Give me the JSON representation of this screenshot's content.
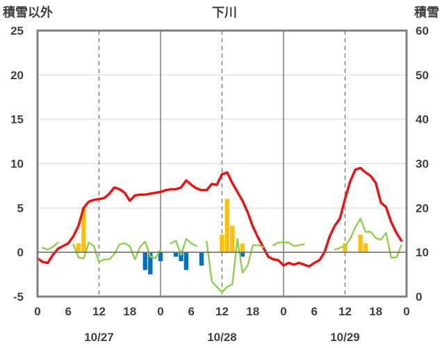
{
  "chart_data": {
    "type": "bar+line",
    "title": "下川",
    "y_left_label": "積雪以外",
    "y_right_label": "積雪",
    "y_left": {
      "min": -5,
      "max": 25,
      "ticks": [
        "-5",
        "0",
        "5",
        "10",
        "15",
        "20",
        "25"
      ]
    },
    "y_right": {
      "min": 0,
      "max": 60,
      "ticks": [
        "0",
        "10",
        "20",
        "30",
        "40",
        "50",
        "60"
      ]
    },
    "x": {
      "min": 0,
      "max": 72,
      "unit": "hours",
      "tick_labels": [
        "0",
        "6",
        "12",
        "18",
        "0",
        "6",
        "12",
        "18",
        "0",
        "6",
        "12",
        "18",
        "0"
      ],
      "dates": [
        "10/27",
        "10/28",
        "10/29"
      ],
      "dashed_at": [
        12,
        36,
        60
      ],
      "solid_at": [
        24,
        48
      ]
    },
    "series": [
      {
        "type": "line",
        "color": "#ee1111",
        "axis": "left",
        "points": [
          [
            0,
            -0.7
          ],
          [
            1,
            -1.1
          ],
          [
            2,
            -1.2
          ],
          [
            3,
            -0.3
          ],
          [
            4,
            0.4
          ],
          [
            5,
            0.7
          ],
          [
            6,
            1.0
          ],
          [
            7,
            1.8
          ],
          [
            8,
            3.0
          ],
          [
            9,
            5.0
          ],
          [
            10,
            5.7
          ],
          [
            11,
            5.9
          ],
          [
            12,
            6.0
          ],
          [
            13,
            6.1
          ],
          [
            14,
            6.6
          ],
          [
            15,
            7.3
          ],
          [
            16,
            7.1
          ],
          [
            17,
            6.7
          ],
          [
            18,
            5.8
          ],
          [
            19,
            6.4
          ],
          [
            20,
            6.5
          ],
          [
            21,
            6.5
          ],
          [
            22,
            6.6
          ],
          [
            23,
            6.7
          ],
          [
            24,
            6.8
          ],
          [
            25,
            7.0
          ],
          [
            26,
            7.1
          ],
          [
            27,
            7.1
          ],
          [
            28,
            7.3
          ],
          [
            29,
            8.1
          ],
          [
            30,
            7.6
          ],
          [
            31,
            7.2
          ],
          [
            32,
            7.0
          ],
          [
            33,
            7.0
          ],
          [
            34,
            7.7
          ],
          [
            35,
            7.6
          ],
          [
            36,
            8.8
          ],
          [
            37,
            9.0
          ],
          [
            38,
            7.8
          ],
          [
            39,
            6.8
          ],
          [
            40,
            5.8
          ],
          [
            41,
            4.5
          ],
          [
            42,
            2.9
          ],
          [
            43,
            1.7
          ],
          [
            44,
            0.6
          ],
          [
            45,
            -0.5
          ],
          [
            46,
            -0.8
          ],
          [
            47,
            -0.9
          ],
          [
            48,
            -1.5
          ],
          [
            49,
            -1.2
          ],
          [
            50,
            -1.4
          ],
          [
            51,
            -1.2
          ],
          [
            52,
            -1.4
          ],
          [
            53,
            -1.6
          ],
          [
            54,
            -1.2
          ],
          [
            55,
            -0.9
          ],
          [
            56,
            0.0
          ],
          [
            57,
            1.8
          ],
          [
            58,
            3.0
          ],
          [
            59,
            3.8
          ],
          [
            60,
            6.0
          ],
          [
            61,
            8.0
          ],
          [
            62,
            9.3
          ],
          [
            63,
            9.5
          ],
          [
            64,
            9.0
          ],
          [
            65,
            8.6
          ],
          [
            66,
            7.8
          ],
          [
            67,
            5.6
          ],
          [
            68,
            5.1
          ],
          [
            69,
            3.4
          ],
          [
            70,
            2.2
          ],
          [
            71,
            1.3
          ]
        ]
      },
      {
        "type": "line",
        "color": "#92d050",
        "axis": "left",
        "segments": [
          [
            [
              1,
              0.5
            ],
            [
              2,
              0.3
            ],
            [
              3,
              0.6
            ],
            [
              4,
              1.1
            ]
          ],
          [
            [
              7,
              0.9
            ],
            [
              8,
              -0.6
            ],
            [
              9,
              -0.7
            ],
            [
              10,
              1.1
            ],
            [
              11,
              0.7
            ],
            [
              12,
              -1.1
            ],
            [
              13,
              -0.8
            ],
            [
              14,
              -0.8
            ],
            [
              15,
              -0.2
            ],
            [
              16,
              0.9
            ],
            [
              17,
              1.0
            ],
            [
              18,
              0.7
            ],
            [
              19,
              -0.8
            ],
            [
              20,
              0.6
            ],
            [
              21,
              1.2
            ],
            [
              22,
              -0.5
            ],
            [
              23,
              -0.7
            ],
            [
              24,
              0.3
            ]
          ],
          [
            [
              26,
              1.0
            ],
            [
              27,
              1.3
            ],
            [
              28,
              -0.3
            ],
            [
              29,
              1.5
            ],
            [
              30,
              1.0
            ],
            [
              31,
              0.7
            ]
          ],
          [
            [
              33,
              1.2
            ],
            [
              34,
              -3.3
            ],
            [
              35,
              -3.9
            ],
            [
              36,
              -4.5
            ],
            [
              37,
              -3.9
            ],
            [
              38,
              -3.6
            ],
            [
              39,
              1.5
            ],
            [
              40,
              -2.3
            ],
            [
              41,
              -1.5
            ],
            [
              42,
              0.8
            ],
            [
              43,
              0.8
            ],
            [
              44,
              0.6
            ]
          ],
          [
            [
              46,
              0.8
            ],
            [
              47,
              1.1
            ],
            [
              48,
              1.1
            ],
            [
              49,
              1.1
            ],
            [
              50,
              0.7
            ],
            [
              51,
              0.8
            ],
            [
              52,
              0.9
            ]
          ],
          [
            [
              58,
              0.3
            ],
            [
              59,
              0.5
            ],
            [
              60,
              0.7
            ],
            [
              61,
              1.5
            ],
            [
              62,
              2.8
            ],
            [
              63,
              3.8
            ],
            [
              64,
              2.3
            ],
            [
              65,
              2.3
            ],
            [
              66,
              1.6
            ],
            [
              67,
              1.4
            ],
            [
              68,
              2.2
            ],
            [
              69,
              -0.6
            ],
            [
              70,
              -0.6
            ],
            [
              71,
              0.8
            ]
          ]
        ]
      },
      {
        "type": "bar",
        "color": "#ffc000",
        "axis": "left",
        "bars": [
          [
            8,
            1.0
          ],
          [
            9,
            5.0
          ],
          [
            36,
            2.0
          ],
          [
            37,
            6.0
          ],
          [
            38,
            3.0
          ],
          [
            40,
            1.0
          ],
          [
            60,
            1.0
          ],
          [
            63,
            2.0
          ],
          [
            64,
            1.0
          ]
        ]
      },
      {
        "type": "bar",
        "color": "#0070c0",
        "axis": "left",
        "bars": [
          [
            21,
            -2.0
          ],
          [
            22,
            -2.5
          ],
          [
            24,
            -1.0
          ],
          [
            27,
            -0.5
          ],
          [
            28,
            -1.0
          ],
          [
            29,
            -2.0
          ],
          [
            32,
            -1.5
          ],
          [
            40,
            -0.5
          ]
        ]
      },
      {
        "type": "line",
        "color": "#7030a0",
        "axis": "right",
        "points": [
          [
            0,
            0
          ],
          [
            72,
            0
          ]
        ]
      }
    ]
  }
}
